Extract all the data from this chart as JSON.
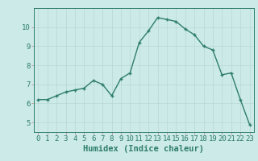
{
  "x": [
    0,
    1,
    2,
    3,
    4,
    5,
    6,
    7,
    8,
    9,
    10,
    11,
    12,
    13,
    14,
    15,
    16,
    17,
    18,
    19,
    20,
    21,
    22,
    23
  ],
  "y": [
    6.2,
    6.2,
    6.4,
    6.6,
    6.7,
    6.8,
    7.2,
    7.0,
    6.4,
    7.3,
    7.6,
    9.2,
    9.8,
    10.5,
    10.4,
    10.3,
    9.9,
    9.6,
    9.0,
    8.8,
    7.5,
    7.6,
    6.2,
    4.9
  ],
  "line_color": "#2e7d6e",
  "marker": "+",
  "marker_size": 3.5,
  "marker_lw": 1.0,
  "bg_color": "#cceae7",
  "grid_color": "#b8d8d5",
  "xlabel": "Humidex (Indice chaleur)",
  "xlim": [
    -0.5,
    23.5
  ],
  "ylim": [
    4.5,
    11.0
  ],
  "yticks": [
    5,
    6,
    7,
    8,
    9,
    10
  ],
  "xticks": [
    0,
    1,
    2,
    3,
    4,
    5,
    6,
    7,
    8,
    9,
    10,
    11,
    12,
    13,
    14,
    15,
    16,
    17,
    18,
    19,
    20,
    21,
    22,
    23
  ],
  "axis_color": "#2e7d6e",
  "tick_color": "#c08080",
  "font_size": 6.5,
  "xlabel_size": 7.5,
  "linewidth": 1.0
}
